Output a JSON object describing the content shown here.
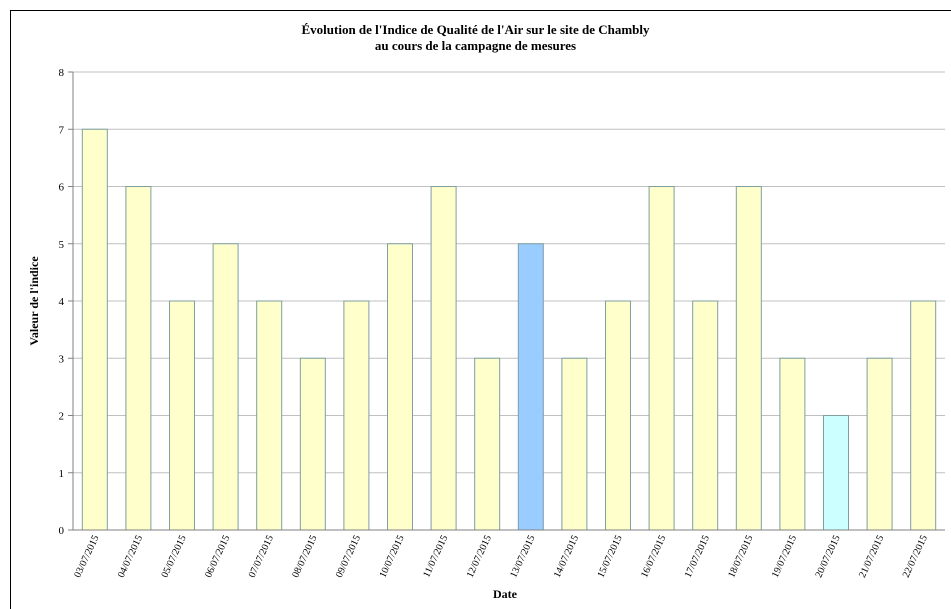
{
  "chart_data": {
    "type": "bar",
    "title_line1": "Évolution de l'Indice de Qualité de l'Air sur le site de Chambly",
    "title_line2": "au cours de la campagne de mesures",
    "xlabel": "Date",
    "ylabel": "Valeur de l'indice",
    "ylim": [
      0,
      8
    ],
    "yticks": [
      "0",
      "1",
      "2",
      "3",
      "4",
      "5",
      "6",
      "7",
      "8"
    ],
    "grid": true,
    "categories": [
      "03/07/2015",
      "04/07/2015",
      "05/07/2015",
      "06/07/2015",
      "07/07/2015",
      "08/07/2015",
      "09/07/2015",
      "10/07/2015",
      "11/07/2015",
      "12/07/2015",
      "13/07/2015",
      "14/07/2015",
      "15/07/2015",
      "16/07/2015",
      "17/07/2015",
      "18/07/2015",
      "19/07/2015",
      "20/07/2015",
      "21/07/2015",
      "22/07/2015"
    ],
    "values": [
      7,
      6,
      4,
      5,
      4,
      3,
      4,
      5,
      6,
      3,
      5,
      3,
      4,
      6,
      4,
      6,
      3,
      2,
      3,
      4
    ],
    "colors": [
      "#ffffcc",
      "#ffffcc",
      "#ffffcc",
      "#ffffcc",
      "#ffffcc",
      "#ffffcc",
      "#ffffcc",
      "#ffffcc",
      "#ffffcc",
      "#ffffcc",
      "#99ccff",
      "#ffffcc",
      "#ffffcc",
      "#ffffcc",
      "#ffffcc",
      "#ffffcc",
      "#ffffcc",
      "#ccffff",
      "#ffffcc",
      "#ffffcc"
    ]
  }
}
